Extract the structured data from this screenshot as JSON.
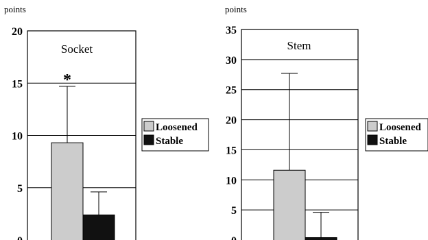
{
  "chart_data": [
    {
      "type": "bar",
      "title": "Socket",
      "ylabel": "points",
      "ylim": [
        0,
        20
      ],
      "yticks": [
        0,
        5,
        10,
        15,
        20
      ],
      "grid": true,
      "legend_position": "right",
      "series": [
        {
          "name": "Loosened",
          "value": 9.3,
          "error": 14.7,
          "color": "#cccccc"
        },
        {
          "name": "Stable",
          "value": 2.4,
          "error": 4.6,
          "color": "#111111"
        }
      ],
      "annotations": [
        {
          "text": "*",
          "series": "Loosened"
        }
      ]
    },
    {
      "type": "bar",
      "title": "Stem",
      "ylabel": "points",
      "ylim": [
        0,
        35
      ],
      "yticks": [
        0,
        5,
        10,
        15,
        20,
        25,
        30,
        35
      ],
      "grid": true,
      "legend_position": "right",
      "series": [
        {
          "name": "Loosened",
          "value": 11.6,
          "error": 27.7,
          "color": "#cccccc"
        },
        {
          "name": "Stable",
          "value": 0.4,
          "error": 4.6,
          "color": "#111111"
        }
      ],
      "annotations": []
    }
  ]
}
